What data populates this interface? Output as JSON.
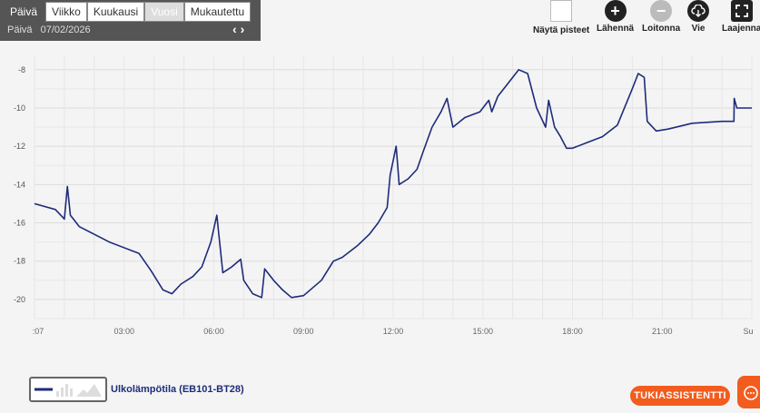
{
  "tabs": {
    "items": [
      "Päivä",
      "Viikko",
      "Kuukausi",
      "Vuosi",
      "Mukautettu"
    ],
    "active_index": 3
  },
  "date": {
    "label": "Päivä",
    "value": "07/02/2026"
  },
  "toolbar": {
    "show_points": "Näytä pisteet",
    "zoom_in": "Lähennä",
    "zoom_out": "Loitonna",
    "export": "Vie",
    "expand": "Laajenna"
  },
  "legend": {
    "series_name": "Ulkolämpötila (EB101-BT28)"
  },
  "support_button": "TUKIASSISTENTTI",
  "colors": {
    "series": "#1e2b7a",
    "accent": "#f25c1e"
  },
  "chart_data": {
    "type": "line",
    "xlabel": "",
    "ylabel": "",
    "x_ticks": [
      ":07",
      "03:00",
      "06:00",
      "09:00",
      "12:00",
      "15:00",
      "18:00",
      "21:00",
      "Su"
    ],
    "y_ticks": [
      "-8",
      "-10",
      "-12",
      "-14",
      "-16",
      "-18",
      "-20"
    ],
    "ylim": [
      -21,
      -7.3
    ],
    "xlim": [
      0,
      24
    ],
    "grid": true,
    "legend_placement": "bottom-left",
    "series": [
      {
        "name": "Ulkolämpötila (EB101-BT28)",
        "x": [
          0,
          0.7,
          1.0,
          1.1,
          1.2,
          1.3,
          1.5,
          2.5,
          3.5,
          3.9,
          4.3,
          4.6,
          4.9,
          5.3,
          5.6,
          5.9,
          6.1,
          6.3,
          6.6,
          6.9,
          7.0,
          7.3,
          7.6,
          7.7,
          8.0,
          8.3,
          8.6,
          9.0,
          9.6,
          10.0,
          10.3,
          10.8,
          11.2,
          11.5,
          11.8,
          11.9,
          12.1,
          12.2,
          12.5,
          12.8,
          13.0,
          13.3,
          13.6,
          13.8,
          14.0,
          14.4,
          14.9,
          15.2,
          15.3,
          15.5,
          15.8,
          16.2,
          16.5,
          16.8,
          17.1,
          17.2,
          17.4,
          17.6,
          17.8,
          18.0,
          18.5,
          19.0,
          19.5,
          20.0,
          20.2,
          20.4,
          20.5,
          20.8,
          21.2,
          22.0,
          23.0,
          23.4,
          23.41,
          23.5,
          24.0
        ],
        "values": [
          -15,
          -15.3,
          -15.8,
          -14.1,
          -15.6,
          -15.8,
          -16.2,
          -17.0,
          -17.6,
          -18.5,
          -19.5,
          -19.7,
          -19.2,
          -18.8,
          -18.3,
          -17.0,
          -15.6,
          -18.6,
          -18.3,
          -17.9,
          -19.0,
          -19.7,
          -19.9,
          -18.4,
          -19.0,
          -19.5,
          -19.9,
          -19.8,
          -19.0,
          -18.0,
          -17.8,
          -17.2,
          -16.6,
          -16.0,
          -15.2,
          -13.5,
          -12.0,
          -14.0,
          -13.7,
          -13.2,
          -12.3,
          -11.0,
          -10.2,
          -9.5,
          -11.0,
          -10.5,
          -10.2,
          -9.6,
          -10.2,
          -9.4,
          -8.8,
          -8.0,
          -8.2,
          -10.0,
          -11.0,
          -9.6,
          -11.0,
          -11.5,
          -12.1,
          -12.1,
          -11.8,
          -11.5,
          -10.9,
          -9.0,
          -8.2,
          -8.4,
          -10.7,
          -11.2,
          -11.1,
          -10.8,
          -10.7,
          -10.7,
          -9.5,
          -10.0,
          -10.0
        ]
      }
    ]
  }
}
